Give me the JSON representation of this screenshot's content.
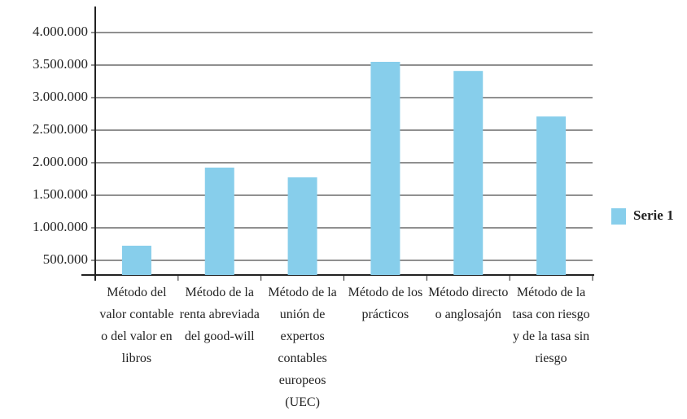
{
  "chart_data": {
    "type": "bar",
    "categories": [
      "Método del valor contable o del valor en libros",
      "Método de la renta abreviada del good-will",
      "Método de la unión de expertos contables europeos (UEC)",
      "Método de los prácticos",
      "Método directo o anglosajón",
      "Método de la tasa con riesgo y de la tasa sin riesgo"
    ],
    "series": [
      {
        "name": "Serie 1",
        "color": "#87ceeb",
        "values": [
          725000,
          1925000,
          1775000,
          3550000,
          3410000,
          2710000
        ]
      }
    ],
    "ylim": [
      275000,
      4400000
    ],
    "yticks": [
      {
        "value": 500000,
        "label": "500.000"
      },
      {
        "value": 1000000,
        "label": "1.000.000"
      },
      {
        "value": 1500000,
        "label": "1.500.000"
      },
      {
        "value": 2000000,
        "label": "2.000.000"
      },
      {
        "value": 2500000,
        "label": "2.500.000"
      },
      {
        "value": 3000000,
        "label": "3.000.000"
      },
      {
        "value": 3500000,
        "label": "3.500.000"
      },
      {
        "value": 4000000,
        "label": "4.000.000"
      }
    ],
    "grid": true,
    "legend": "right"
  }
}
